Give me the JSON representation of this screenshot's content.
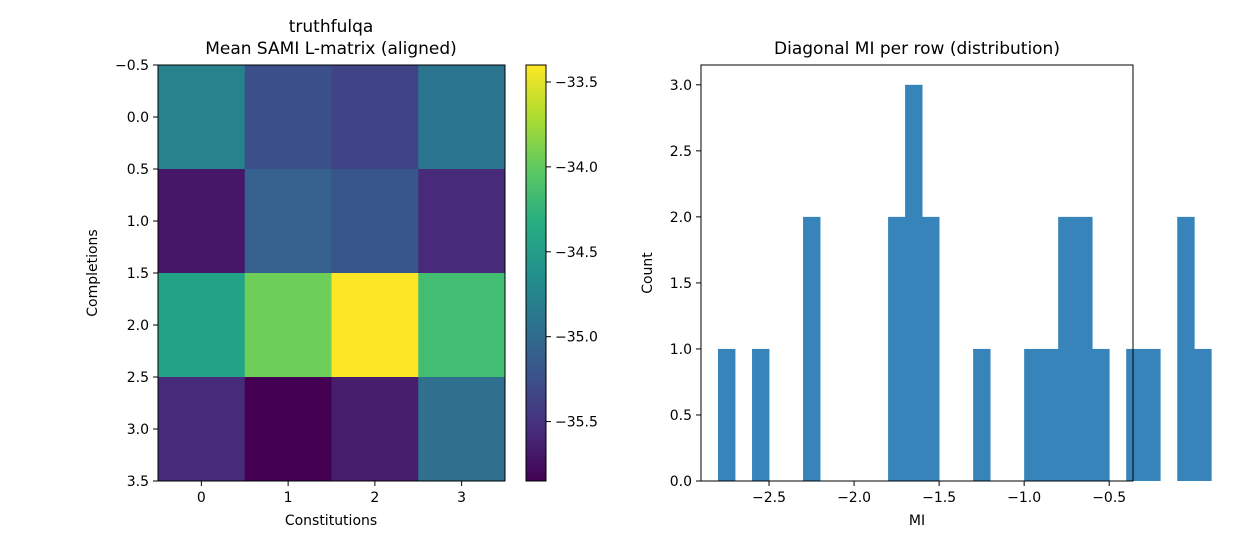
{
  "chart_data": [
    {
      "type": "heatmap",
      "title": "truthfulqa",
      "subtitle": "Mean SAMI L-matrix (aligned)",
      "xlabel": "Constitutions",
      "ylabel": "Completions",
      "x_ticks": [
        "0",
        "1",
        "2",
        "3"
      ],
      "y_ticks": [
        "−0.5",
        "0.0",
        "0.5",
        "1.0",
        "1.5",
        "2.0",
        "2.5",
        "3.0",
        "3.5"
      ],
      "ylim": [
        -0.5,
        3.5
      ],
      "colormap": "viridis",
      "values": [
        [
          -34.75,
          -35.25,
          -35.35,
          -34.9
        ],
        [
          -35.7,
          -35.1,
          -35.2,
          -35.55
        ],
        [
          -34.45,
          -33.95,
          -33.4,
          -34.15
        ],
        [
          -35.55,
          -35.85,
          -35.65,
          -34.95
        ]
      ],
      "colorbar": {
        "vmin": -35.85,
        "vmax": -33.4,
        "ticks": [
          -35.5,
          -35.0,
          -34.5,
          -34.0,
          -33.5
        ],
        "tick_labels": [
          "−35.5",
          "−35.0",
          "−34.5",
          "−34.0",
          "−33.5"
        ]
      }
    },
    {
      "type": "bar",
      "title": "Diagonal MI per row (distribution)",
      "xlabel": "MI",
      "ylabel": "Count",
      "xlim": [
        -2.9,
        -0.36
      ],
      "ylim": [
        0,
        3.15
      ],
      "x_ticks": [
        -2.5,
        -2.0,
        -1.5,
        -1.0,
        -0.5
      ],
      "x_tick_labels": [
        "−2.5",
        "−2.0",
        "−1.5",
        "−1.0",
        "−0.5"
      ],
      "y_ticks": [
        0,
        0.5,
        1.0,
        1.5,
        2.0,
        2.5,
        3.0
      ],
      "y_tick_labels": [
        "0.0",
        "0.5",
        "1.0",
        "1.5",
        "2.0",
        "2.5",
        "3.0"
      ],
      "bin_start": -2.8,
      "bin_width": 0.1,
      "counts": [
        1,
        0,
        1,
        0,
        0,
        2,
        0,
        0,
        0,
        0,
        2,
        3,
        2,
        0,
        0,
        1,
        0,
        0,
        1,
        1,
        2,
        2,
        1,
        0,
        1,
        1,
        0,
        2,
        1
      ],
      "bar_color": "#3784bb"
    }
  ]
}
